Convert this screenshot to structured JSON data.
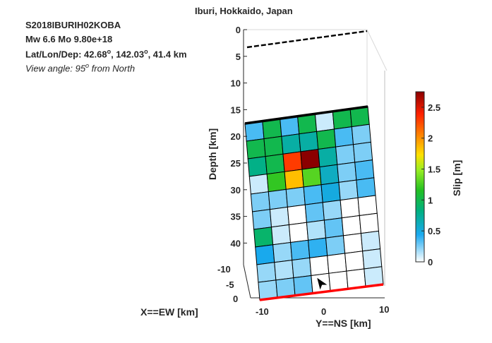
{
  "header": {
    "title": "Iburi, Hokkaido, Japan",
    "event_id": "S2018IBURIH02KOBA",
    "magnitude": "Mw 6.6    Mo 9.80e+18",
    "location_prefix": "Lat/Lon/Dep: 42.68",
    "location_lon": ", 142.03",
    "location_suffix": ", 41.4 km",
    "view_prefix": "View angle:  95",
    "view_suffix": " from North",
    "degree_mark": "o"
  },
  "chart_data": {
    "type": "heatmap",
    "title": "Iburi, Hokkaido, Japan",
    "zlabel": "Depth [km]",
    "xlabel": "X==EW [km]",
    "ylabel": "Y==NS [km]",
    "colorbar_label": "Slip [m]",
    "depth_ticks": [
      "0",
      "5",
      "10",
      "15",
      "20",
      "25",
      "30",
      "35",
      "40"
    ],
    "ns_ticks": [
      "-10",
      "0",
      "10"
    ],
    "ew_ticks": [
      "-10",
      "-5",
      "0"
    ],
    "colorbar_ticks": [
      "0",
      "0.5",
      "1",
      "1.5",
      "2",
      "2.5"
    ],
    "colorbar_range": [
      0,
      2.75
    ],
    "colormap": [
      "#ffffff",
      "#1aa9f0",
      "#00b080",
      "#22c022",
      "#99ee22",
      "#ffe000",
      "#ff8000",
      "#ff2000",
      "#8b0000"
    ],
    "grid_rows": 10,
    "grid_cols": 7,
    "slip": [
      [
        0.35,
        1.0,
        0.35,
        1.0,
        0.1,
        1.0,
        1.0
      ],
      [
        1.0,
        1.0,
        0.7,
        0.7,
        1.0,
        0.35,
        0.25
      ],
      [
        0.8,
        1.0,
        2.3,
        2.75,
        0.7,
        0.25,
        0.25
      ],
      [
        0.1,
        1.2,
        1.85,
        1.3,
        0.6,
        0.25,
        0.35
      ],
      [
        0.25,
        0.25,
        0.25,
        0.35,
        0.5,
        0.2,
        0.35
      ],
      [
        0.25,
        0.1,
        0.0,
        0.3,
        0.2,
        0.0,
        0.0
      ],
      [
        0.9,
        0.1,
        0.0,
        0.15,
        0.3,
        0.0,
        0.0
      ],
      [
        0.45,
        0.2,
        0.35,
        0.4,
        0.25,
        0.0,
        0.1
      ],
      [
        0.2,
        0.15,
        0.2,
        0.0,
        0.0,
        0.0,
        0.1
      ],
      [
        0.2,
        0.25,
        0.3,
        0.0,
        0.0,
        0.0,
        0.1
      ]
    ],
    "colors": {
      "fault_top_edge": "#000000",
      "fault_bottom_edge": "#ff0000",
      "surface_trace": "#000000",
      "epicenter": "#000000"
    }
  }
}
